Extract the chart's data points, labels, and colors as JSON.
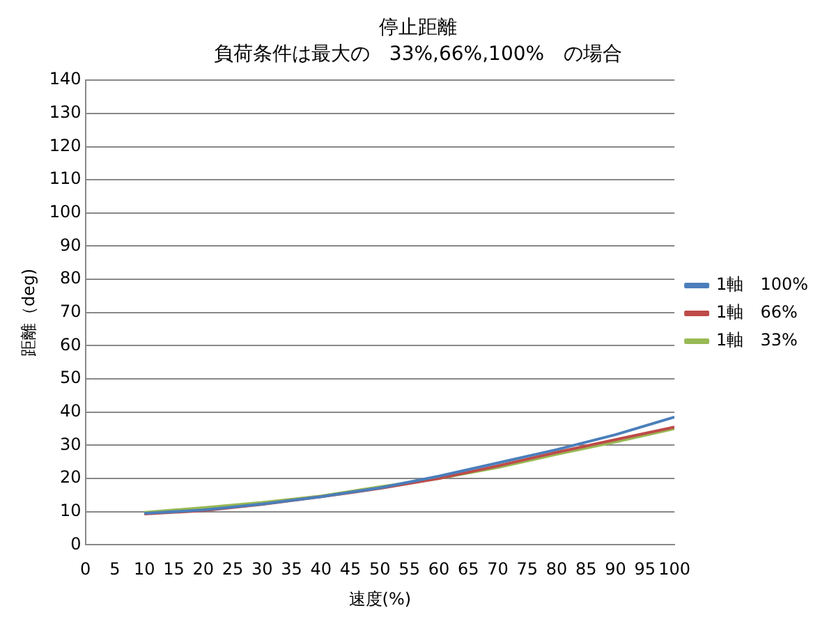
{
  "chart_data": {
    "type": "line",
    "title": "停止距離",
    "subtitle": "負荷条件は最大の　33%,66%,100%　の場合",
    "xlabel": "速度(%)",
    "ylabel": "距離（deg)",
    "x": [
      10,
      20,
      30,
      40,
      50,
      60,
      70,
      80,
      90,
      100
    ],
    "series": [
      {
        "name": "1軸　100%",
        "color": "#4a7ebb",
        "values": [
          9.5,
          10.5,
          12.3,
          14.5,
          17.2,
          20.7,
          24.7,
          28.7,
          33.2,
          38.5
        ]
      },
      {
        "name": "1軸　66%",
        "color": "#be4b48",
        "values": [
          9.3,
          10.3,
          12.2,
          14.5,
          17.0,
          20.0,
          23.8,
          27.9,
          31.7,
          35.5
        ]
      },
      {
        "name": "1軸　33%",
        "color": "#98b954",
        "values": [
          9.8,
          11.2,
          12.8,
          14.7,
          17.5,
          20.0,
          23.3,
          27.3,
          31.0,
          35.0
        ]
      }
    ],
    "xlim": [
      0,
      100
    ],
    "xticks": [
      0,
      5,
      10,
      15,
      20,
      25,
      30,
      35,
      40,
      45,
      50,
      55,
      60,
      65,
      70,
      75,
      80,
      85,
      90,
      95,
      100
    ],
    "ylim": [
      0,
      140
    ],
    "yticks": [
      0,
      10,
      20,
      30,
      40,
      50,
      60,
      70,
      80,
      90,
      100,
      110,
      120,
      130,
      140
    ],
    "grid": "y",
    "legend": "right",
    "marker": "none",
    "line_style": "solid"
  }
}
